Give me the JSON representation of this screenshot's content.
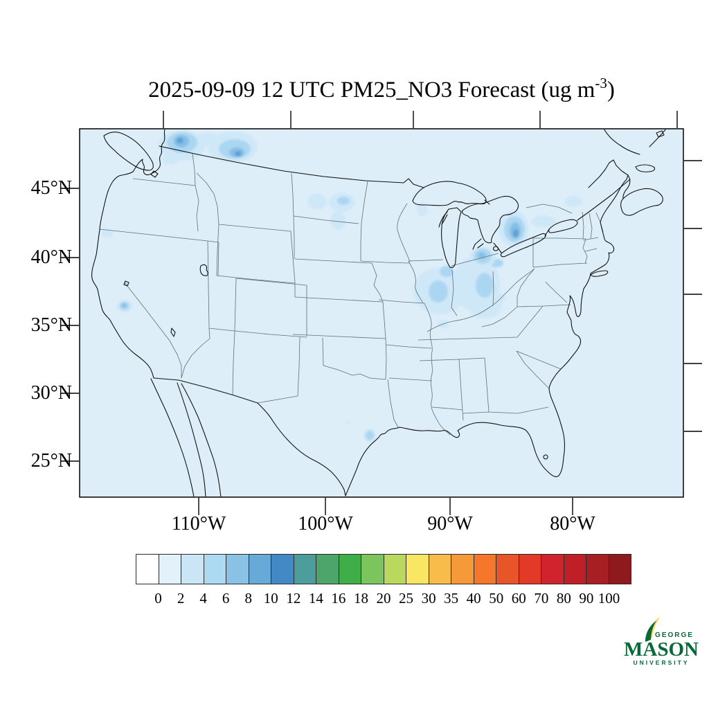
{
  "title": {
    "prefix": "2025-09-09 12 UTC PM25_NO3 Forecast (ug m",
    "superscript": "-3",
    "suffix": ")"
  },
  "map": {
    "lat_labels": [
      "45°N",
      "40°N",
      "35°N",
      "30°N",
      "25°N"
    ],
    "lon_labels": [
      "110°W",
      "100°W",
      "90°W",
      "80°W"
    ],
    "background_color": "#ddeef9",
    "coastline_color": "#111111",
    "state_line_color": "#5f6e7a",
    "data_shade_colors": [
      "#cfe8f8",
      "#abd6f1",
      "#85bfe6",
      "#5f9fd4"
    ]
  },
  "chart_data": {
    "type": "heatmap",
    "title": "2025-09-09 12 UTC PM25_NO3 Forecast (ug m-3)",
    "variable": "PM25_NO3",
    "units": "ug m-3",
    "valid_time": "2025-09-09 12 UTC",
    "region": "Continental United States",
    "lat_ticks_deg_north": [
      45,
      40,
      35,
      30,
      25
    ],
    "lon_ticks_deg_west": [
      110,
      100,
      90,
      80
    ],
    "colorbar_levels": [
      0,
      2,
      4,
      6,
      8,
      10,
      12,
      14,
      16,
      18,
      20,
      25,
      30,
      35,
      40,
      50,
      60,
      70,
      80,
      90,
      100
    ],
    "notes": "Background concentrations 0-2 over whole domain; enhanced values 2-8 over southern Canada (Prairies), southern Ontario near Lake Huron, Michigan thumb, Illinois-Indiana-Ohio corridor, California Central Valley, Houston area"
  },
  "colorbar": {
    "tick_labels": [
      "0",
      "2",
      "4",
      "6",
      "8",
      "10",
      "12",
      "14",
      "16",
      "18",
      "20",
      "25",
      "30",
      "35",
      "40",
      "50",
      "60",
      "70",
      "80",
      "90",
      "100"
    ],
    "cell_colors": [
      "#ffffff",
      "#e3f1fa",
      "#c9e5f6",
      "#abdaf2",
      "#8ac2e5",
      "#68aad7",
      "#4289c6",
      "#4d9d9d",
      "#4da56c",
      "#3fae49",
      "#7cc55e",
      "#bad75e",
      "#f9e763",
      "#f7bc4a",
      "#f59a38",
      "#f4772b",
      "#e85529",
      "#e13a27",
      "#d0232e",
      "#bf2027",
      "#a71e23",
      "#8e1a1e"
    ]
  },
  "logo": {
    "line1": "GEORGE",
    "line2": "MASON",
    "line3": "UNIVERSITY",
    "green": "#046A38",
    "gold": "#FFCC33"
  }
}
